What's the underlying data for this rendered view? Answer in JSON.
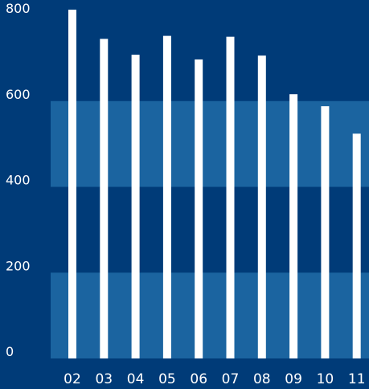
{
  "colors": {
    "background": "#003b78",
    "band": "#1b64a0",
    "bar": "#ffffff",
    "text": "#ffffff"
  },
  "chart_data": {
    "type": "bar",
    "title": "",
    "xlabel": "",
    "ylabel": "",
    "categories": [
      "02",
      "03",
      "04",
      "05",
      "06",
      "07",
      "08",
      "09",
      "10",
      "11"
    ],
    "values": [
      813,
      745,
      708,
      752,
      697,
      750,
      706,
      616,
      588,
      524
    ],
    "ylim": [
      0,
      800
    ],
    "yticks": [
      0,
      200,
      400,
      600,
      800
    ],
    "grid": "alternating horizontal bands",
    "legend": "none"
  }
}
